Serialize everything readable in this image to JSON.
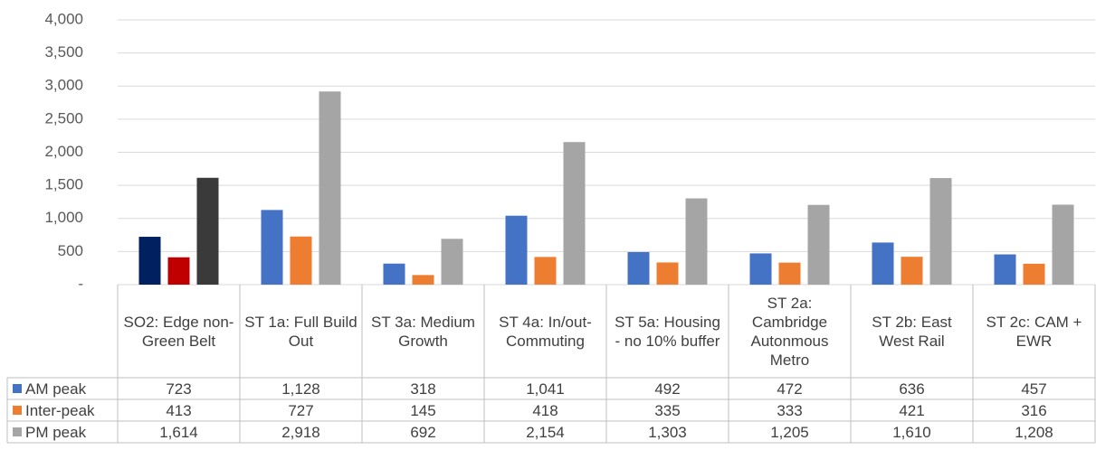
{
  "chart_data": {
    "type": "bar",
    "categories": [
      "SO2: Edge non-Green Belt",
      "ST 1a: Full Build Out",
      "ST 3a: Medium Growth",
      "ST 4a: In/out-Commuting",
      "ST 5a: Housing - no 10% buffer",
      "ST 2a: Cambridge Autonmous Metro",
      "ST 2b: East West Rail",
      "ST 2c: CAM + EWR"
    ],
    "series": [
      {
        "name": "AM peak",
        "color": "#4472c4",
        "colors": [
          "#002060",
          "#4472c4",
          "#4472c4",
          "#4472c4",
          "#4472c4",
          "#4472c4",
          "#4472c4",
          "#4472c4"
        ],
        "values": [
          723,
          1128,
          318,
          1041,
          492,
          472,
          636,
          457
        ],
        "value_labels": [
          "723",
          "1,128",
          "318",
          "1,041",
          "492",
          "472",
          "636",
          "457"
        ]
      },
      {
        "name": "Inter-peak",
        "color": "#ed7d31",
        "colors": [
          "#c00000",
          "#ed7d31",
          "#ed7d31",
          "#ed7d31",
          "#ed7d31",
          "#ed7d31",
          "#ed7d31",
          "#ed7d31"
        ],
        "values": [
          413,
          727,
          145,
          418,
          335,
          333,
          421,
          316
        ],
        "value_labels": [
          "413",
          "727",
          "145",
          "418",
          "335",
          "333",
          "421",
          "316"
        ]
      },
      {
        "name": "PM peak",
        "color": "#a5a5a5",
        "colors": [
          "#3a3a3a",
          "#a5a5a5",
          "#a5a5a5",
          "#a5a5a5",
          "#a5a5a5",
          "#a5a5a5",
          "#a5a5a5",
          "#a5a5a5"
        ],
        "values": [
          1614,
          2918,
          692,
          2154,
          1303,
          1205,
          1610,
          1208
        ],
        "value_labels": [
          "1,614",
          "2,918",
          "692",
          "2,154",
          "1,303",
          "1,205",
          "1,610",
          "1,208"
        ]
      }
    ],
    "ylim": [
      0,
      4000
    ],
    "yticks": [
      {
        "value": 0,
        "label": "-"
      },
      500,
      {
        "value": 1000,
        "label": "1,000"
      },
      {
        "value": 1500,
        "label": "1,500"
      },
      {
        "value": 2000,
        "label": "2,000"
      },
      {
        "value": 2500,
        "label": "2,500"
      },
      {
        "value": 3000,
        "label": "3,000"
      },
      {
        "value": 3500,
        "label": "3,500"
      },
      {
        "value": 4000,
        "label": "4,000"
      }
    ],
    "grid": true
  }
}
